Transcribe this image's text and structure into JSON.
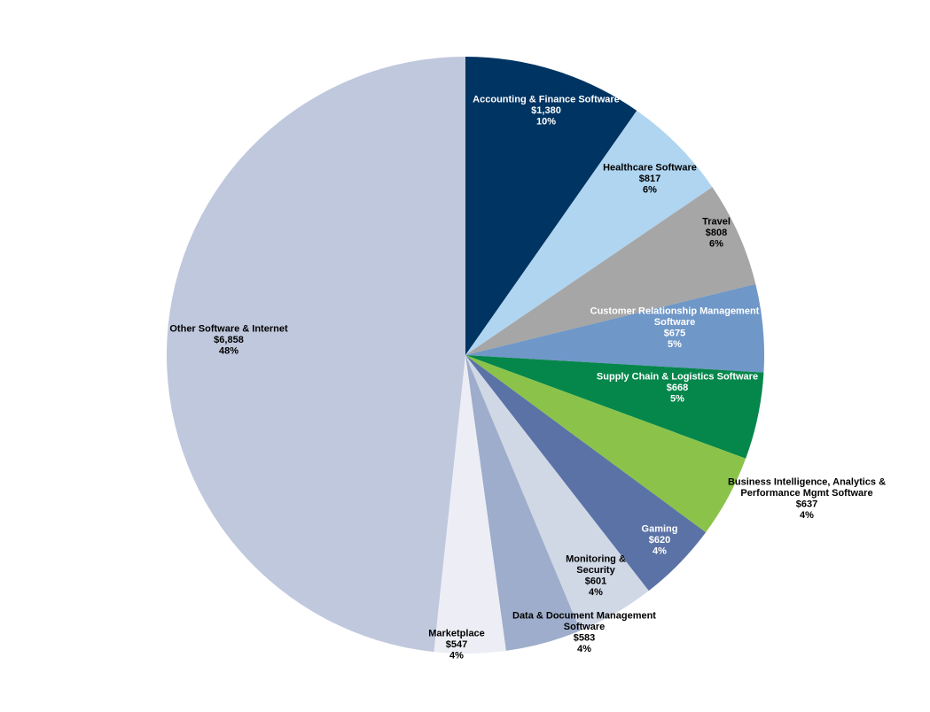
{
  "chart_data": {
    "type": "pie",
    "title": "",
    "start": "12 o'clock",
    "direction": "clockwise",
    "legend": "none",
    "slices": [
      {
        "name": "Accounting & Finance Software",
        "name_lines": [
          "Accounting & Finance Software"
        ],
        "value_label": "$1,380",
        "pct_label": "10%",
        "value": 1380,
        "color": "#003462",
        "text_color": "#ffffff"
      },
      {
        "name": "Healthcare Software",
        "name_lines": [
          "Healthcare Software"
        ],
        "value_label": "$817",
        "pct_label": "6%",
        "value": 817,
        "color": "#afd5f1",
        "text_color": "#000000"
      },
      {
        "name": "Travel",
        "name_lines": [
          "Travel"
        ],
        "value_label": "$808",
        "pct_label": "6%",
        "value": 808,
        "color": "#a6a6a6",
        "text_color": "#000000"
      },
      {
        "name": "Customer Relationship Management Software",
        "name_lines": [
          "Customer Relationship Management",
          "Software"
        ],
        "value_label": "$675",
        "pct_label": "5%",
        "value": 675,
        "color": "#6f97c7",
        "text_color": "#ffffff"
      },
      {
        "name": "Supply Chain & Logistics Software",
        "name_lines": [
          "Supply Chain & Logistics Software"
        ],
        "value_label": "$668",
        "pct_label": "5%",
        "value": 668,
        "color": "#05874b",
        "text_color": "#ffffff"
      },
      {
        "name": "Business Intelligence, Analytics & Performance Mgmt Software",
        "name_lines": [
          "Business Intelligence, Analytics &",
          "Performance Mgmt Software"
        ],
        "value_label": "$637",
        "pct_label": "4%",
        "value": 637,
        "color": "#8bc34a",
        "text_color": "#000000"
      },
      {
        "name": "Gaming",
        "name_lines": [
          "Gaming"
        ],
        "value_label": "$620",
        "pct_label": "4%",
        "value": 620,
        "color": "#5b72a6",
        "text_color": "#ffffff"
      },
      {
        "name": "Monitoring & Security",
        "name_lines": [
          "Monitoring &",
          "Security"
        ],
        "value_label": "$601",
        "pct_label": "4%",
        "value": 601,
        "color": "#d0d8e6",
        "text_color": "#000000"
      },
      {
        "name": "Data & Document Management Software",
        "name_lines": [
          "Data & Document Management",
          "Software"
        ],
        "value_label": "$583",
        "pct_label": "4%",
        "value": 583,
        "color": "#9eadcb",
        "text_color": "#000000"
      },
      {
        "name": "Marketplace",
        "name_lines": [
          "Marketplace"
        ],
        "value_label": "$547",
        "pct_label": "4%",
        "value": 547,
        "color": "#edeef5",
        "text_color": "#000000"
      },
      {
        "name": "Other Software & Internet",
        "name_lines": [
          "Other Software & Internet"
        ],
        "value_label": "$6,858",
        "pct_label": "48%",
        "value": 6858,
        "color": "#bfc8dd",
        "text_color": "#000000"
      }
    ]
  }
}
